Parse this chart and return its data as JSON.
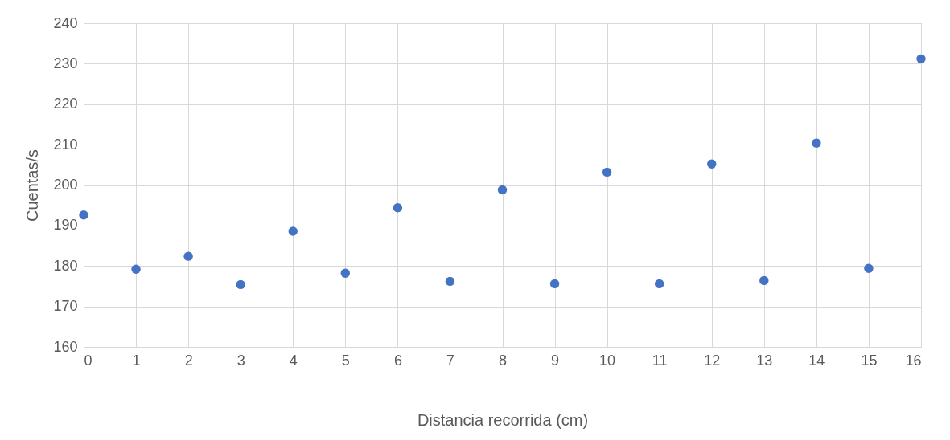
{
  "chart_data": {
    "type": "scatter",
    "xlabel": "Distancia recorrida (cm)",
    "ylabel": "Cuentas/s",
    "x": [
      0,
      1,
      2,
      3,
      4,
      5,
      6,
      7,
      8,
      9,
      10,
      11,
      12,
      13,
      14,
      15,
      16
    ],
    "series": [
      {
        "color": "#4472c4",
        "values": [
          192.6,
          179.2,
          182.4,
          175.4,
          188.6,
          178.2,
          194.4,
          176.2,
          198.8,
          175.6,
          203.2,
          175.6,
          205.2,
          176.4,
          210.4,
          179.4,
          231.2
        ]
      }
    ],
    "xlim": [
      0,
      16
    ],
    "xticks": [
      0,
      1,
      2,
      3,
      4,
      5,
      6,
      7,
      8,
      9,
      10,
      11,
      12,
      13,
      14,
      15,
      16
    ],
    "ylim": [
      160,
      240
    ],
    "yticks": [
      160,
      170,
      180,
      190,
      200,
      210,
      220,
      230,
      240
    ],
    "grid": true,
    "marker": "circle",
    "legend": false
  }
}
